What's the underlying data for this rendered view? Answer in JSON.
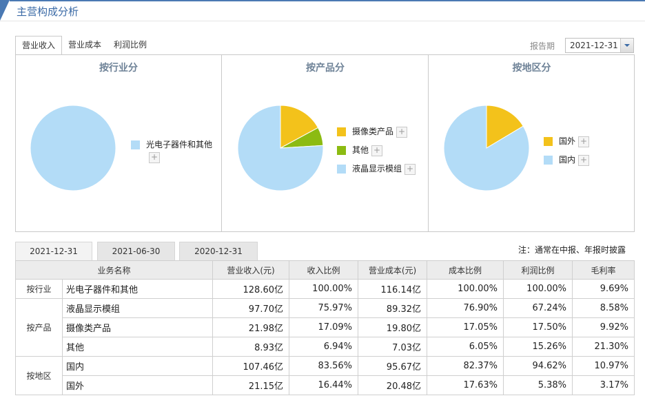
{
  "header": {
    "title": "主营构成分析"
  },
  "top_tabs": [
    "营业收入",
    "营业成本",
    "利润比例"
  ],
  "report": {
    "label": "报告期",
    "value": "2021-12-31"
  },
  "colors": {
    "light_blue": "#b3dcf7",
    "yellow": "#f3c21b",
    "green": "#8cbb12",
    "accent": "#4a79b3"
  },
  "panels": [
    {
      "title": "按行业分",
      "slices": [
        {
          "label": "光电子器件和其他",
          "percent": 100.0,
          "color": "#b3dcf7"
        }
      ]
    },
    {
      "title": "按产品分",
      "slices": [
        {
          "label": "摄像类产品",
          "percent": 17.09,
          "color": "#f3c21b"
        },
        {
          "label": "其他",
          "percent": 6.94,
          "color": "#8cbb12"
        },
        {
          "label": "液晶显示模组",
          "percent": 75.97,
          "color": "#b3dcf7"
        }
      ]
    },
    {
      "title": "按地区分",
      "slices": [
        {
          "label": "国外",
          "percent": 16.44,
          "color": "#f3c21b"
        },
        {
          "label": "国内",
          "percent": 83.56,
          "color": "#b3dcf7"
        }
      ]
    }
  ],
  "period_tabs": [
    "2021-12-31",
    "2021-06-30",
    "2020-12-31"
  ],
  "note": "注：通常在中报、年报时披露",
  "table": {
    "headers": [
      "业务名称",
      "营业收入(元)",
      "收入比例",
      "营业成本(元)",
      "成本比例",
      "利润比例",
      "毛利率"
    ],
    "groups": [
      {
        "category": "按行业",
        "rows": [
          [
            "光电子器件和其他",
            "128.60亿",
            "100.00%",
            "116.14亿",
            "100.00%",
            "100.00%",
            "9.69%"
          ]
        ]
      },
      {
        "category": "按产品",
        "rows": [
          [
            "液晶显示模组",
            "97.70亿",
            "75.97%",
            "89.32亿",
            "76.90%",
            "67.24%",
            "8.58%"
          ],
          [
            "摄像类产品",
            "21.98亿",
            "17.09%",
            "19.80亿",
            "17.05%",
            "17.50%",
            "9.92%"
          ],
          [
            "其他",
            "8.93亿",
            "6.94%",
            "7.03亿",
            "6.05%",
            "15.26%",
            "21.30%"
          ]
        ]
      },
      {
        "category": "按地区",
        "rows": [
          [
            "国内",
            "107.46亿",
            "83.56%",
            "95.67亿",
            "82.37%",
            "94.62%",
            "10.97%"
          ],
          [
            "国外",
            "21.15亿",
            "16.44%",
            "20.48亿",
            "17.63%",
            "5.38%",
            "3.17%"
          ]
        ]
      }
    ]
  }
}
